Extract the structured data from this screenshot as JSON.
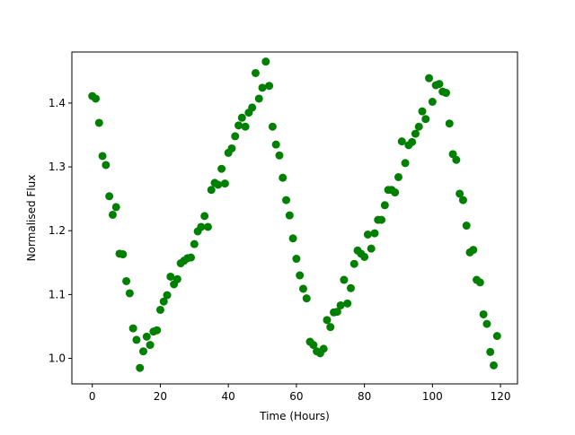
{
  "chart_data": {
    "type": "scatter",
    "title": "",
    "xlabel": "Time (Hours)",
    "ylabel": "Normalised Flux",
    "xlim": [
      -6,
      125
    ],
    "ylim": [
      0.96,
      1.48
    ],
    "xticks": [
      0,
      20,
      40,
      60,
      80,
      100,
      120
    ],
    "yticks": [
      1.0,
      1.1,
      1.2,
      1.3,
      1.4
    ],
    "xtick_labels": [
      "0",
      "20",
      "40",
      "60",
      "80",
      "100",
      "120"
    ],
    "ytick_labels": [
      "1.0",
      "1.1",
      "1.2",
      "1.3",
      "1.4"
    ],
    "grid": false,
    "marker_color": "#008000",
    "series": [
      {
        "points": [
          [
            0,
            1.411
          ],
          [
            1,
            1.407
          ],
          [
            2,
            1.369
          ],
          [
            3,
            1.317
          ],
          [
            4,
            1.303
          ],
          [
            5,
            1.254
          ],
          [
            6,
            1.225
          ],
          [
            7,
            1.237
          ],
          [
            8,
            1.164
          ],
          [
            9,
            1.163
          ],
          [
            10,
            1.121
          ],
          [
            11,
            1.102
          ],
          [
            12,
            1.047
          ],
          [
            13,
            1.029
          ],
          [
            14,
            0.985
          ],
          [
            15,
            1.011
          ],
          [
            16,
            1.034
          ],
          [
            17,
            1.021
          ],
          [
            18,
            1.042
          ],
          [
            19,
            1.044
          ],
          [
            20,
            1.076
          ],
          [
            21,
            1.089
          ],
          [
            22,
            1.099
          ],
          [
            23,
            1.128
          ],
          [
            24,
            1.116
          ],
          [
            25,
            1.124
          ],
          [
            26,
            1.149
          ],
          [
            27,
            1.153
          ],
          [
            28,
            1.157
          ],
          [
            29,
            1.158
          ],
          [
            30,
            1.179
          ],
          [
            31,
            1.199
          ],
          [
            32,
            1.206
          ],
          [
            33,
            1.223
          ],
          [
            34,
            1.206
          ],
          [
            35,
            1.264
          ],
          [
            36,
            1.275
          ],
          [
            37,
            1.272
          ],
          [
            38,
            1.297
          ],
          [
            39,
            1.274
          ],
          [
            40,
            1.322
          ],
          [
            41,
            1.329
          ],
          [
            42,
            1.348
          ],
          [
            43,
            1.365
          ],
          [
            44,
            1.377
          ],
          [
            45,
            1.363
          ],
          [
            46,
            1.385
          ],
          [
            47,
            1.393
          ],
          [
            48,
            1.447
          ],
          [
            49,
            1.407
          ],
          [
            50,
            1.424
          ],
          [
            51,
            1.465
          ],
          [
            52,
            1.427
          ],
          [
            53,
            1.363
          ],
          [
            54,
            1.335
          ],
          [
            55,
            1.318
          ],
          [
            56,
            1.283
          ],
          [
            57,
            1.248
          ],
          [
            58,
            1.224
          ],
          [
            59,
            1.188
          ],
          [
            60,
            1.156
          ],
          [
            61,
            1.13
          ],
          [
            62,
            1.109
          ],
          [
            63,
            1.094
          ],
          [
            64,
            1.026
          ],
          [
            65,
            1.021
          ],
          [
            66,
            1.011
          ],
          [
            67,
            1.008
          ],
          [
            68,
            1.015
          ],
          [
            69,
            1.06
          ],
          [
            70,
            1.049
          ],
          [
            71,
            1.072
          ],
          [
            72,
            1.073
          ],
          [
            73,
            1.083
          ],
          [
            74,
            1.123
          ],
          [
            75,
            1.086
          ],
          [
            76,
            1.11
          ],
          [
            77,
            1.148
          ],
          [
            78,
            1.169
          ],
          [
            79,
            1.164
          ],
          [
            80,
            1.159
          ],
          [
            81,
            1.194
          ],
          [
            82,
            1.172
          ],
          [
            83,
            1.196
          ],
          [
            84,
            1.217
          ],
          [
            85,
            1.217
          ],
          [
            86,
            1.24
          ],
          [
            87,
            1.264
          ],
          [
            88,
            1.264
          ],
          [
            89,
            1.26
          ],
          [
            90,
            1.284
          ],
          [
            91,
            1.34
          ],
          [
            92,
            1.306
          ],
          [
            93,
            1.334
          ],
          [
            94,
            1.339
          ],
          [
            95,
            1.352
          ],
          [
            96,
            1.363
          ],
          [
            97,
            1.387
          ],
          [
            98,
            1.375
          ],
          [
            99,
            1.439
          ],
          [
            100,
            1.402
          ],
          [
            101,
            1.428
          ],
          [
            102,
            1.43
          ],
          [
            103,
            1.418
          ],
          [
            104,
            1.416
          ],
          [
            105,
            1.368
          ],
          [
            106,
            1.32
          ],
          [
            107,
            1.311
          ],
          [
            108,
            1.258
          ],
          [
            109,
            1.248
          ],
          [
            110,
            1.208
          ],
          [
            111,
            1.166
          ],
          [
            112,
            1.17
          ],
          [
            113,
            1.123
          ],
          [
            114,
            1.119
          ],
          [
            115,
            1.069
          ],
          [
            116,
            1.054
          ],
          [
            117,
            1.01
          ],
          [
            118,
            0.989
          ],
          [
            119,
            1.035
          ]
        ]
      }
    ]
  }
}
